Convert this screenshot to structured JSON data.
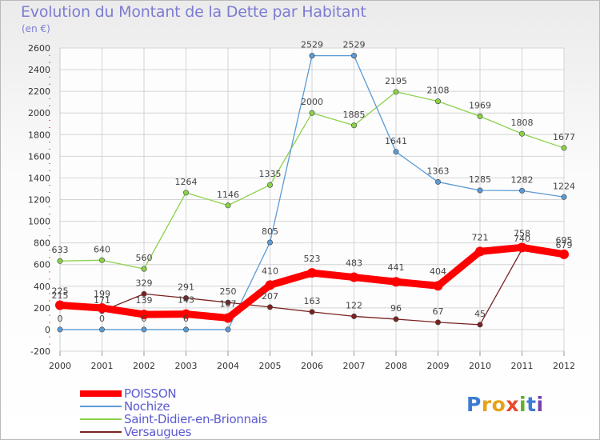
{
  "chart_data": {
    "type": "line",
    "title": "Evolution du Montant de la Dette par Habitant",
    "subtitle": "(en €)",
    "x": [
      "2000",
      "2001",
      "2002",
      "2003",
      "2004",
      "2005",
      "2006",
      "2007",
      "2008",
      "2009",
      "2010",
      "2011",
      "2012"
    ],
    "ylim": [
      -200,
      2600
    ],
    "yticks": [
      -200,
      0,
      200,
      400,
      600,
      800,
      1000,
      1200,
      1400,
      1600,
      1800,
      2000,
      2200,
      2400,
      2600
    ],
    "grid": true,
    "legend_position": "bottom-left",
    "series": [
      {
        "name": "POISSON",
        "color": "#ff0000",
        "values": [
          225,
          199,
          139,
          143,
          107,
          410,
          523,
          483,
          441,
          404,
          721,
          758,
          695
        ],
        "labels": [
          "225",
          "199",
          "139",
          "143",
          "107",
          "410",
          "523",
          "483",
          "441",
          "404",
          "721",
          "758",
          "695"
        ]
      },
      {
        "name": "Nochize",
        "color": "#5b9bd5",
        "values": [
          0,
          0,
          0,
          0,
          0,
          805,
          2529,
          2529,
          1641,
          1363,
          1285,
          1282,
          1224
        ],
        "labels": [
          "0",
          "0",
          "0",
          "0",
          "",
          "805",
          "2529",
          "2529",
          "1641",
          "1363",
          "1285",
          "1282",
          "1224"
        ]
      },
      {
        "name": "Saint-Didier-en-Brionnais",
        "color": "#8bd14a",
        "values": [
          633,
          640,
          560,
          1264,
          1146,
          1335,
          2000,
          1885,
          2195,
          2108,
          1969,
          1808,
          1677
        ],
        "labels": [
          "633",
          "640",
          "560",
          "1264",
          "1146",
          "1335",
          "2000",
          "1885",
          "2195",
          "2108",
          "1969",
          "1808",
          "1677"
        ]
      },
      {
        "name": "Versaugues",
        "color": "#7a2222",
        "values": [
          215,
          171,
          329,
          291,
          250,
          207,
          163,
          122,
          96,
          67,
          45,
          740,
          679
        ],
        "labels": [
          "215",
          "171",
          "329",
          "291",
          "250",
          "207",
          "163",
          "122",
          "96",
          "67",
          "45",
          "740",
          "679"
        ]
      }
    ]
  },
  "logo": {
    "text": "Proxiti",
    "colors": [
      "#3b7bd4",
      "#e8a21a",
      "#e8a21a",
      "#e84a2a",
      "#5fb02a",
      "#3b7bd4",
      "#7a3fb0"
    ]
  }
}
